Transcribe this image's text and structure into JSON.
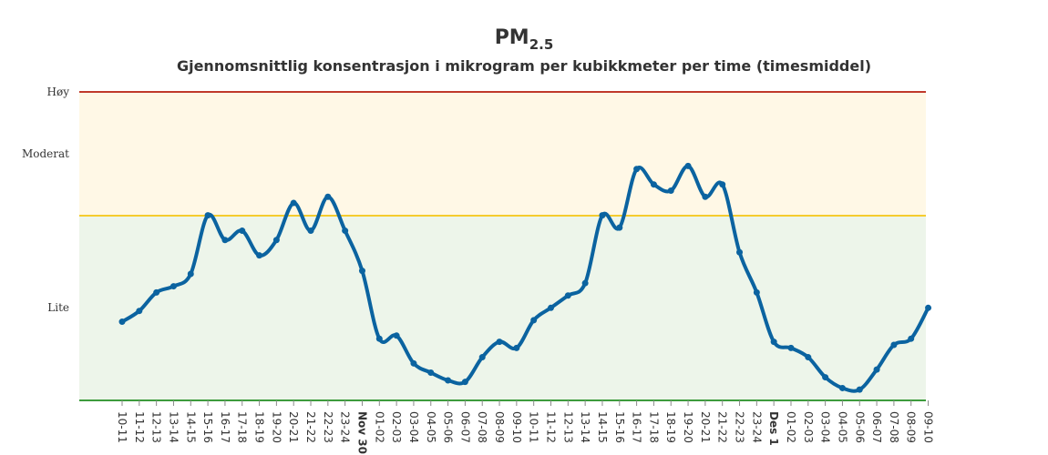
{
  "chart_data": {
    "type": "line",
    "title_main": "PM",
    "title_sub": "2.5",
    "subtitle": "Gjennomsnittlig konsentrasjon i mikrogram per kubikkmeter per time (timesmiddel)",
    "bands": [
      {
        "name": "Lite",
        "color": "#edf5ea"
      },
      {
        "name": "Moderat",
        "color": "#fff8e6"
      }
    ],
    "threshold_lines": [
      {
        "name": "Høy",
        "color": "#c0392b"
      },
      {
        "name": "Moderat-grense",
        "color": "#f5cc2e"
      },
      {
        "name": "Lite-grense",
        "color": "#3d9c3d"
      }
    ],
    "y_labels": [
      "Høy",
      "Moderat",
      "Lite"
    ],
    "line_color": "#0b63a0",
    "categories": [
      "10-11",
      "11-12",
      "12-13",
      "13-14",
      "14-15",
      "15-16",
      "16-17",
      "17-18",
      "18-19",
      "19-20",
      "20-21",
      "21-22",
      "22-23",
      "23-24",
      "Nov 30",
      "01-02",
      "02-03",
      "03-04",
      "04-05",
      "05-06",
      "06-07",
      "07-08",
      "08-09",
      "09-10",
      "10-11",
      "11-12",
      "12-13",
      "13-14",
      "14-15",
      "15-16",
      "16-17",
      "17-18",
      "18-19",
      "19-20",
      "20-21",
      "21-22",
      "22-23",
      "23-24",
      "Des 1",
      "01-02",
      "02-03",
      "03-04",
      "04-05",
      "05-06",
      "06-07",
      "07-08",
      "08-09",
      "09-10"
    ],
    "bold_categories": [
      "Nov 30",
      "Des 1"
    ],
    "values": [
      25.5,
      29,
      35,
      37,
      41,
      60,
      52,
      55,
      47,
      52,
      64,
      55,
      66,
      55,
      42,
      20,
      21,
      12,
      9,
      6.5,
      6,
      14,
      19,
      17,
      26,
      30,
      34,
      38,
      60,
      56,
      75,
      70,
      68,
      76,
      66,
      70,
      48,
      35,
      19,
      17,
      14,
      7.5,
      4,
      3.5,
      10,
      18,
      20,
      30
    ]
  }
}
